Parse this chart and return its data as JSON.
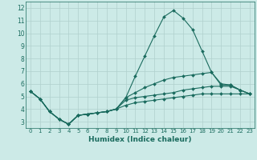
{
  "xlabel": "Humidex (Indice chaleur)",
  "bg_color": "#cceae7",
  "grid_color": "#b0d0cd",
  "line_color": "#1a6b5e",
  "xlim": [
    -0.5,
    23.5
  ],
  "ylim": [
    2.5,
    12.5
  ],
  "xticks": [
    0,
    1,
    2,
    3,
    4,
    5,
    6,
    7,
    8,
    9,
    10,
    11,
    12,
    13,
    14,
    15,
    16,
    17,
    18,
    19,
    20,
    21,
    22,
    23
  ],
  "yticks": [
    3,
    4,
    5,
    6,
    7,
    8,
    9,
    10,
    11,
    12
  ],
  "series1_x": [
    0,
    1,
    2,
    3,
    4,
    5,
    6,
    7,
    8,
    9,
    10,
    11,
    12,
    13,
    14,
    15,
    16,
    17,
    18,
    19,
    20,
    21,
    22,
    23
  ],
  "series1_y": [
    5.4,
    4.8,
    3.8,
    3.2,
    2.8,
    3.5,
    3.6,
    3.7,
    3.8,
    4.0,
    4.9,
    6.6,
    8.2,
    9.8,
    11.3,
    11.8,
    11.2,
    10.3,
    8.6,
    6.9,
    5.9,
    5.9,
    5.5,
    5.2
  ],
  "series2_x": [
    0,
    1,
    2,
    3,
    4,
    5,
    6,
    7,
    8,
    9,
    10,
    11,
    12,
    13,
    14,
    15,
    16,
    17,
    18,
    19,
    20,
    21,
    22,
    23
  ],
  "series2_y": [
    5.4,
    4.8,
    3.8,
    3.2,
    2.8,
    3.5,
    3.6,
    3.7,
    3.8,
    4.0,
    4.9,
    5.3,
    5.7,
    6.0,
    6.3,
    6.5,
    6.6,
    6.7,
    6.8,
    6.9,
    6.0,
    5.9,
    5.5,
    5.2
  ],
  "series3_x": [
    0,
    1,
    2,
    3,
    4,
    5,
    6,
    7,
    8,
    9,
    10,
    11,
    12,
    13,
    14,
    15,
    16,
    17,
    18,
    19,
    20,
    21,
    22,
    23
  ],
  "series3_y": [
    5.4,
    4.8,
    3.8,
    3.2,
    2.8,
    3.5,
    3.6,
    3.7,
    3.8,
    4.0,
    4.7,
    4.9,
    5.0,
    5.1,
    5.2,
    5.3,
    5.5,
    5.6,
    5.7,
    5.8,
    5.8,
    5.8,
    5.5,
    5.2
  ],
  "series4_x": [
    0,
    1,
    2,
    3,
    4,
    5,
    6,
    7,
    8,
    9,
    10,
    11,
    12,
    13,
    14,
    15,
    16,
    17,
    18,
    19,
    20,
    21,
    22,
    23
  ],
  "series4_y": [
    5.4,
    4.8,
    3.8,
    3.2,
    2.8,
    3.5,
    3.6,
    3.7,
    3.8,
    4.0,
    4.3,
    4.5,
    4.6,
    4.7,
    4.8,
    4.9,
    5.0,
    5.1,
    5.2,
    5.2,
    5.2,
    5.2,
    5.2,
    5.2
  ]
}
